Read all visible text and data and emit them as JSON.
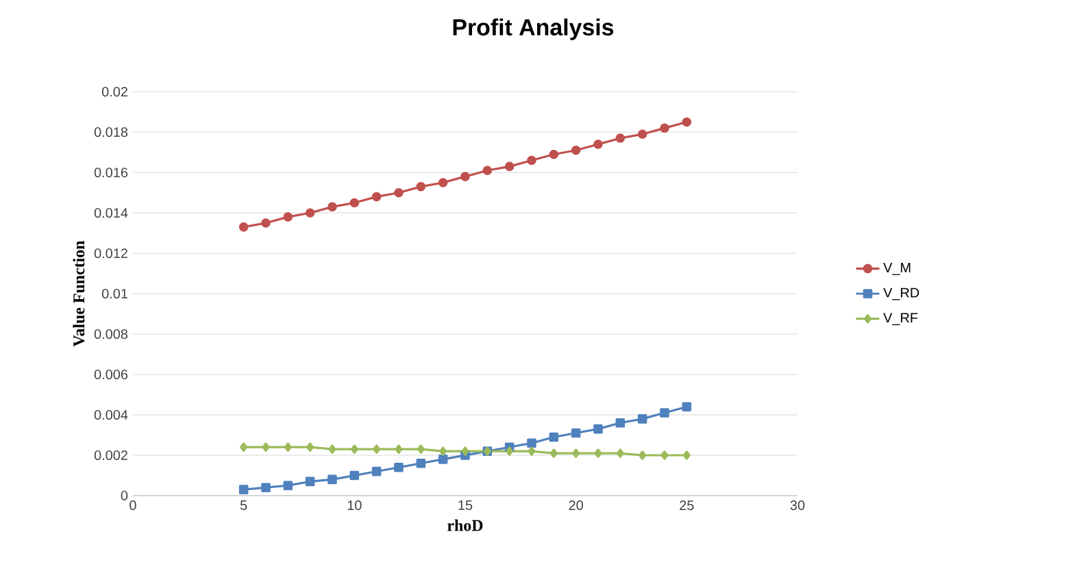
{
  "chart_data": {
    "type": "line",
    "title": "Profit Analysis",
    "xlabel": "rhoD",
    "ylabel": "Value Function",
    "x": [
      5,
      6,
      7,
      8,
      9,
      10,
      11,
      12,
      13,
      14,
      15,
      16,
      17,
      18,
      19,
      20,
      21,
      22,
      23,
      24,
      25
    ],
    "series": [
      {
        "name": "V_M",
        "color": "#c0504d",
        "marker": "circle",
        "values": [
          0.0133,
          0.0135,
          0.0138,
          0.014,
          0.0143,
          0.0145,
          0.0148,
          0.015,
          0.0153,
          0.0155,
          0.0158,
          0.0161,
          0.0163,
          0.0166,
          0.0169,
          0.0171,
          0.0174,
          0.0177,
          0.0179,
          0.0182,
          0.0185
        ]
      },
      {
        "name": "V_RD",
        "color": "#4f81bd",
        "marker": "square",
        "values": [
          0.0003,
          0.0004,
          0.0005,
          0.0007,
          0.0008,
          0.001,
          0.0012,
          0.0014,
          0.0016,
          0.0018,
          0.002,
          0.0022,
          0.0024,
          0.0026,
          0.0029,
          0.0031,
          0.0033,
          0.0036,
          0.0038,
          0.0041,
          0.0044
        ]
      },
      {
        "name": "V_RF",
        "color": "#9bbb59",
        "marker": "diamond",
        "values": [
          0.0024,
          0.0024,
          0.0024,
          0.0024,
          0.0023,
          0.0023,
          0.0023,
          0.0023,
          0.0023,
          0.0022,
          0.0022,
          0.0022,
          0.0022,
          0.0022,
          0.0021,
          0.0021,
          0.0021,
          0.0021,
          0.002,
          0.002,
          0.002
        ]
      }
    ],
    "xlim": [
      0,
      30
    ],
    "xticks": [
      0,
      5,
      10,
      15,
      20,
      25,
      30
    ],
    "ylim": [
      0,
      0.02
    ],
    "yticks": [
      0,
      0.002,
      0.004,
      0.006,
      0.008,
      0.01,
      0.012,
      0.014,
      0.016,
      0.018,
      0.02
    ],
    "grid": "y",
    "legend": "right",
    "line_style": "solid"
  }
}
